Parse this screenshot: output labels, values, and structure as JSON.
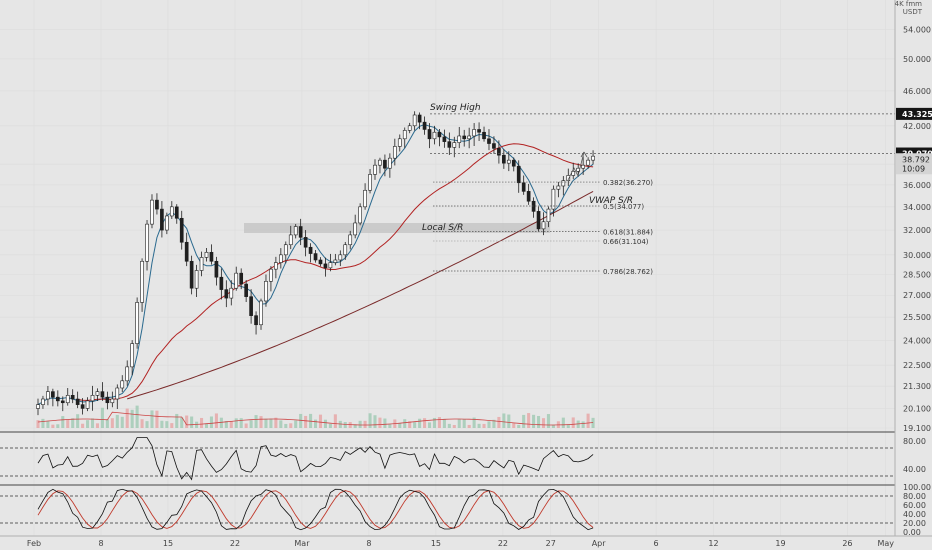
{
  "chart_data": {
    "type": "candlestick",
    "quote_currency": "USDT",
    "y_axis": {
      "scale": "log",
      "ticks": [
        "54.000",
        "50.000",
        "46.000",
        "42.000",
        "38.000",
        "36.000",
        "34.000",
        "32.000",
        "30.000",
        "28.500",
        "27.000",
        "25.500",
        "24.000",
        "22.500",
        "21.300",
        "20.100",
        "19.100"
      ],
      "range": [
        19.1,
        58.0
      ],
      "header": [
        "4K fmm",
        "USDT"
      ]
    },
    "x_axis": {
      "ticks": [
        "Feb",
        "8",
        "15",
        "22",
        "Mar",
        "8",
        "15",
        "22",
        "27",
        "Apr",
        "6",
        "12",
        "19",
        "26",
        "May"
      ],
      "start": "Feb 1",
      "end": "May 1"
    },
    "price_tags": [
      {
        "value": "43.325",
        "style": "dark"
      },
      {
        "value": "39.070",
        "style": "dark"
      },
      {
        "value": "38.792",
        "style": "light"
      },
      {
        "value": "10:09",
        "style": "light"
      }
    ],
    "annotations": [
      {
        "text": "Swing High"
      },
      {
        "text": "Local S/R"
      },
      {
        "text": "VWAP S/R"
      }
    ],
    "fib_levels": [
      {
        "label": "0.382(36.270)",
        "value": 36.27
      },
      {
        "label": "0.5(34.077)",
        "value": 34.077
      },
      {
        "label": "0.618(31.884)",
        "value": 31.884
      },
      {
        "label": "0.66(31.104)",
        "value": 31.104
      },
      {
        "label": "0.786(28.762)",
        "value": 28.762
      }
    ],
    "horizontal_lines": [
      43.325,
      39.07
    ],
    "close_series": [
      20.3,
      20.6,
      21.0,
      20.7,
      20.5,
      20.4,
      20.8,
      20.6,
      20.3,
      20.1,
      20.5,
      20.8,
      21.0,
      20.7,
      20.4,
      20.6,
      21.2,
      21.6,
      22.4,
      23.8,
      26.5,
      29.5,
      32.5,
      34.6,
      33.8,
      32.0,
      33.2,
      34.0,
      33.0,
      31.0,
      29.5,
      27.5,
      28.8,
      29.8,
      30.2,
      29.5,
      28.3,
      27.4,
      26.8,
      27.5,
      28.6,
      27.8,
      26.9,
      25.6,
      25.0,
      26.6,
      28.0,
      28.9,
      29.4,
      30.0,
      30.8,
      31.6,
      32.3,
      31.4,
      30.6,
      30.1,
      29.6,
      29.3,
      29.0,
      29.4,
      29.6,
      30.0,
      30.8,
      31.6,
      32.6,
      34.0,
      35.5,
      37.0,
      37.9,
      38.4,
      37.6,
      38.6,
      39.8,
      40.6,
      41.5,
      42.0,
      43.2,
      42.4,
      41.6,
      40.6,
      41.3,
      40.8,
      40.3,
      39.7,
      40.2,
      40.9,
      40.6,
      40.9,
      41.6,
      41.3,
      40.6,
      40.1,
      39.6,
      38.9,
      38.1,
      38.4,
      37.8,
      36.2,
      35.4,
      34.5,
      33.6,
      32.1,
      32.7,
      33.8,
      35.6,
      35.9,
      36.4,
      36.9,
      37.3,
      37.6,
      37.9,
      38.4,
      38.8
    ],
    "indicators": {
      "rsi": {
        "ticks": [
          "80.00",
          "40.00"
        ],
        "range": [
          20,
          90
        ],
        "levels": [
          70,
          30
        ]
      },
      "stoch": {
        "ticks": [
          "100.00",
          "80.00",
          "60.00",
          "40.00",
          "20.00",
          "0.00"
        ],
        "range": [
          0,
          100
        ],
        "levels": [
          80,
          20
        ]
      }
    }
  }
}
